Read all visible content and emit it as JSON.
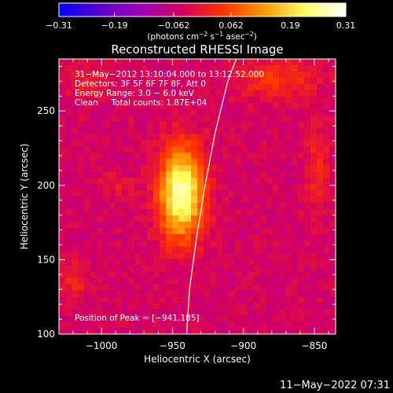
{
  "chart_data": {
    "type": "heatmap",
    "title": "Reconstructed RHESSI Image",
    "xlabel": "Heliocentric X (arcsec)",
    "ylabel": "Heliocentric Y (arcsec)",
    "xlim": [
      -1030,
      -835
    ],
    "ylim": [
      100,
      285
    ],
    "x_ticks": [
      -1000,
      -950,
      -900,
      -850
    ],
    "x_tick_labels": [
      "−1000",
      "−950",
      "−900",
      "−850"
    ],
    "y_ticks": [
      100,
      150,
      200,
      250
    ],
    "y_tick_labels": [
      "100",
      "150",
      "200",
      "250"
    ],
    "colorbar": {
      "range": [
        -0.31,
        0.31
      ],
      "ticks": [
        -0.31,
        -0.19,
        -0.062,
        0.062,
        0.19,
        0.31
      ],
      "tick_labels": [
        "−0.31",
        "−0.19",
        "−0.062",
        "0.062",
        "0.19",
        "0.31"
      ],
      "label_parts": [
        "(photons cm",
        "−2",
        " s",
        "−1",
        " asec",
        "−2",
        ")"
      ],
      "colors": [
        "#0000ff",
        "#5a00d0",
        "#a000b8",
        "#d40060",
        "#ff3000",
        "#ff9a00",
        "#ffff60",
        "#ffffff"
      ]
    },
    "annotations": [
      "31−May−2012 13:10:04.000 to 13:12:52.000",
      "Detectors: 3F 5F 6F 7F 8F, Att 0",
      "Energy Range: 3.0 − 6.0 keV",
      "Clean     Total counts: 1.87E+04"
    ],
    "peak_label": "Position of Peak = [−941,185]",
    "peak_position": [
      -941,
      185
    ],
    "limb_curve": [
      [
        -940,
        100
      ],
      [
        -938,
        130
      ],
      [
        -933,
        165
      ],
      [
        -927,
        200
      ],
      [
        -920,
        235
      ],
      [
        -911,
        270
      ],
      [
        -905,
        285
      ]
    ],
    "sources": [
      {
        "x": -944,
        "y": 195,
        "sx": 11,
        "sy": 22,
        "amp": 0.31
      },
      {
        "x": -877,
        "y": 272,
        "sx": 20,
        "sy": 9,
        "amp": 0.09
      },
      {
        "x": -848,
        "y": 212,
        "sx": 6,
        "sy": 22,
        "amp": 0.07
      },
      {
        "x": -1010,
        "y": 270,
        "sx": 12,
        "sy": 8,
        "amp": 0.05
      },
      {
        "x": -1020,
        "y": 135,
        "sx": 8,
        "sy": 10,
        "amp": 0.06
      },
      {
        "x": -990,
        "y": 200,
        "sx": 8,
        "sy": 6,
        "amp": 0.05
      }
    ],
    "background_level": -0.045
  },
  "footer": {
    "timestamp": "11−May−2022 07:31"
  }
}
